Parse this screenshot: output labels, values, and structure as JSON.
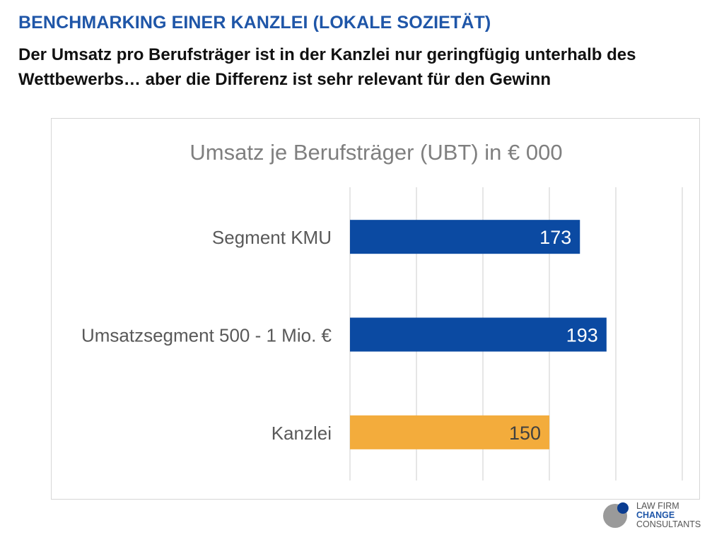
{
  "header": {
    "title": "BENCHMARKING EINER KANZLEI (LOKALE SOZIETÄT)",
    "subtitle": "Der Umsatz pro Berufsträger ist in der Kanzlei nur geringfügig unterhalb des Wettbewerbs… aber die Differenz ist sehr relevant für den Gewinn"
  },
  "logo": {
    "line1": "LAW FIRM",
    "line2": "CHANGE",
    "line3": "CONSULTANTS"
  },
  "chart_data": {
    "type": "bar",
    "orientation": "horizontal",
    "title": "Umsatz je Berufsträger (UBT) in € 000",
    "categories": [
      "Segment KMU",
      "Umsatzsegment 500 - 1 Mio. €",
      "Kanzlei"
    ],
    "values": [
      173,
      193,
      150
    ],
    "colors": [
      "#0b4aa2",
      "#0b4aa2",
      "#f3ac3c"
    ],
    "xlim": [
      0,
      250
    ],
    "grid": true,
    "data_labels": true
  }
}
